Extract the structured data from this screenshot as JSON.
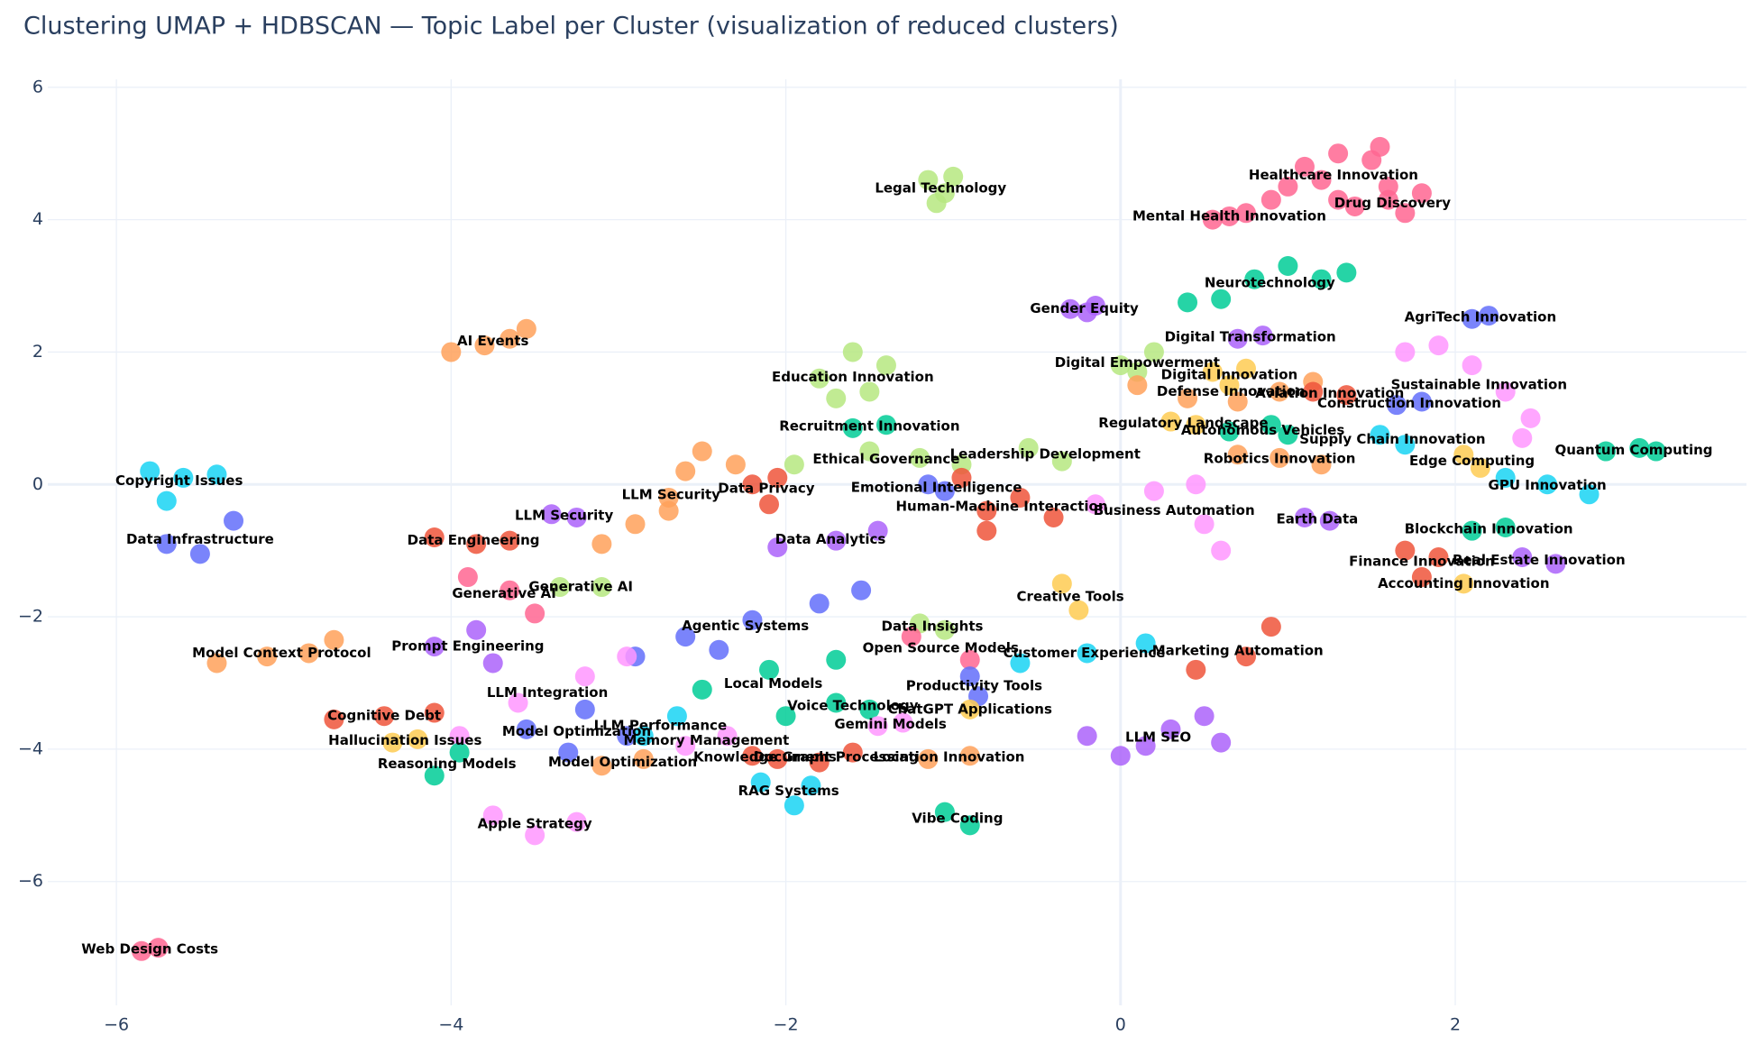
{
  "chart_data": {
    "type": "scatter",
    "title": "Clustering UMAP + HDBSCAN — Topic Label per Cluster (visualization of reduced clusters)",
    "xlim": [
      -6.41,
      3.74
    ],
    "ylim": [
      -7.87,
      6.12
    ],
    "xticks": [
      {
        "value": -6,
        "label": "−6"
      },
      {
        "value": -4,
        "label": "−4"
      },
      {
        "value": -2,
        "label": "−2"
      },
      0,
      2
    ],
    "yticks": [
      {
        "value": -6,
        "label": "−6"
      },
      {
        "value": -4,
        "label": "−4"
      },
      {
        "value": -2,
        "label": "−2"
      },
      0,
      2,
      4,
      6
    ],
    "grid": true,
    "series": [
      {
        "name": "Healthcare Innovation",
        "color": "#FF6692",
        "x": [
          0.9,
          1.1,
          1.3,
          1.5,
          1.6,
          1.3,
          1.0,
          1.2,
          1.55
        ],
        "y": [
          4.3,
          4.8,
          5.0,
          4.9,
          4.5,
          4.3,
          4.5,
          4.6,
          5.1
        ]
      },
      {
        "name": "Drug Discovery",
        "color": "#FF6692",
        "x": [
          1.4,
          1.6,
          1.8,
          1.7
        ],
        "y": [
          4.2,
          4.3,
          4.4,
          4.1
        ]
      },
      {
        "name": "Mental Health Innovation",
        "color": "#FF6692",
        "x": [
          0.55,
          0.65,
          0.75
        ],
        "y": [
          4.0,
          4.05,
          4.1
        ]
      },
      {
        "name": "Legal Technology",
        "color": "#B6E880",
        "x": [
          -1.15,
          -1.0,
          -1.05,
          -1.1
        ],
        "y": [
          4.6,
          4.65,
          4.4,
          4.25
        ]
      },
      {
        "name": "Neurotechnology",
        "color": "#00cc96",
        "x": [
          0.4,
          0.6,
          0.8,
          1.0,
          1.2,
          1.35
        ],
        "y": [
          2.75,
          2.8,
          3.1,
          3.3,
          3.1,
          3.2
        ]
      },
      {
        "name": "Gender Equity",
        "color": "#ab63fa",
        "x": [
          -0.3,
          -0.15,
          -0.2
        ],
        "y": [
          2.65,
          2.7,
          2.6
        ]
      },
      {
        "name": "AgriTech Innovation",
        "color": "#636efa",
        "x": [
          2.1,
          2.2
        ],
        "y": [
          2.5,
          2.55
        ]
      },
      {
        "name": "Digital Transformation",
        "color": "#ab63fa",
        "x": [
          0.7,
          0.85
        ],
        "y": [
          2.2,
          2.25
        ]
      },
      {
        "name": "Digital Empowerment",
        "color": "#B6E880",
        "x": [
          0.0,
          0.2,
          0.1
        ],
        "y": [
          1.8,
          2.0,
          1.7
        ]
      },
      {
        "name": "Digital Innovation",
        "color": "#FECB52",
        "x": [
          0.55,
          0.75,
          0.65
        ],
        "y": [
          1.7,
          1.75,
          1.5
        ]
      },
      {
        "name": "Sustainable Innovation",
        "color": "#FF97FF",
        "x": [
          1.7,
          1.9,
          2.1,
          2.3,
          2.45,
          2.4
        ],
        "y": [
          2.0,
          2.1,
          1.8,
          1.4,
          1.0,
          0.7
        ]
      },
      {
        "name": "Education Innovation",
        "color": "#B6E880",
        "x": [
          -1.8,
          -1.6,
          -1.4,
          -1.5,
          -1.7
        ],
        "y": [
          1.6,
          2.0,
          1.8,
          1.4,
          1.3
        ]
      },
      {
        "name": "Defense Innovation",
        "color": "#FFA15A",
        "x": [
          0.1,
          0.4,
          0.7,
          0.95,
          1.15
        ],
        "y": [
          1.5,
          1.3,
          1.25,
          1.4,
          1.55
        ]
      },
      {
        "name": "Aviation Innovation",
        "color": "#EF553B",
        "x": [
          1.15,
          1.35
        ],
        "y": [
          1.4,
          1.35
        ]
      },
      {
        "name": "Construction Innovation",
        "color": "#636efa",
        "x": [
          1.65,
          1.8
        ],
        "y": [
          1.2,
          1.25
        ]
      },
      {
        "name": "Regulatory Landscape",
        "color": "#FECB52",
        "x": [
          0.3,
          0.45
        ],
        "y": [
          0.95,
          0.9
        ]
      },
      {
        "name": "Autonomous Vehicles",
        "color": "#00cc96",
        "x": [
          0.65,
          0.9,
          1.0
        ],
        "y": [
          0.8,
          0.9,
          0.75
        ]
      },
      {
        "name": "Supply Chain Innovation",
        "color": "#19d3f3",
        "x": [
          1.55,
          1.7
        ],
        "y": [
          0.75,
          0.6
        ]
      },
      {
        "name": "Edge Computing",
        "color": "#FECB52",
        "x": [
          2.05,
          2.15
        ],
        "y": [
          0.45,
          0.25
        ]
      },
      {
        "name": "Quantum Computing",
        "color": "#00cc96",
        "x": [
          2.9,
          3.1,
          3.2
        ],
        "y": [
          0.5,
          0.55,
          0.5
        ]
      },
      {
        "name": "Robotics Innovation",
        "color": "#FFA15A",
        "x": [
          0.7,
          0.95,
          1.2
        ],
        "y": [
          0.45,
          0.4,
          0.3
        ]
      },
      {
        "name": "GPU Innovation",
        "color": "#19d3f3",
        "x": [
          2.3,
          2.55,
          2.8
        ],
        "y": [
          0.1,
          0.0,
          -0.15
        ]
      },
      {
        "name": "Copyright Issues",
        "color": "#19d3f3",
        "x": [
          -5.8,
          -5.6,
          -5.4,
          -5.7
        ],
        "y": [
          0.2,
          0.1,
          0.15,
          -0.25
        ]
      },
      {
        "name": "Data Infrastructure",
        "color": "#636efa",
        "x": [
          -5.7,
          -5.5,
          -5.3
        ],
        "y": [
          -0.9,
          -1.05,
          -0.55
        ]
      },
      {
        "name": "AI Events",
        "color": "#FFA15A",
        "x": [
          -4.0,
          -3.8,
          -3.65,
          -3.55
        ],
        "y": [
          2.0,
          2.1,
          2.2,
          2.35
        ]
      },
      {
        "name": "LLM Security",
        "color": "#FFA15A",
        "x": [
          -3.1,
          -2.9,
          -2.7,
          -2.6,
          -2.5,
          -2.3,
          -2.7
        ],
        "y": [
          -0.9,
          -0.6,
          -0.2,
          0.2,
          0.5,
          0.3,
          -0.4
        ]
      },
      {
        "name": "LLM Security",
        "color": "#ab63fa",
        "x": [
          -3.4,
          -3.25
        ],
        "y": [
          -0.45,
          -0.5
        ]
      },
      {
        "name": "Data Privacy",
        "color": "#EF553B",
        "x": [
          -2.2,
          -2.05,
          -2.1
        ],
        "y": [
          0.0,
          0.1,
          -0.3
        ]
      },
      {
        "name": "Recruitment Innovation",
        "color": "#00cc96",
        "x": [
          -1.6,
          -1.4
        ],
        "y": [
          0.85,
          0.9
        ]
      },
      {
        "name": "Ethical Governance",
        "color": "#B6E880",
        "x": [
          -1.95,
          -1.5,
          -1.2,
          -0.95
        ],
        "y": [
          0.3,
          0.5,
          0.4,
          0.3
        ]
      },
      {
        "name": "Leadership Development",
        "color": "#B6E880",
        "x": [
          -0.55,
          -0.35
        ],
        "y": [
          0.55,
          0.35
        ]
      },
      {
        "name": "Emotional Intelligence",
        "color": "#636efa",
        "x": [
          -1.15,
          -1.05
        ],
        "y": [
          0.0,
          -0.1
        ]
      },
      {
        "name": "Human-Machine Interaction",
        "color": "#EF553B",
        "x": [
          -0.95,
          -0.8,
          -0.6,
          -0.4,
          -0.8
        ],
        "y": [
          0.1,
          -0.4,
          -0.2,
          -0.5,
          -0.7
        ]
      },
      {
        "name": "Business Automation",
        "color": "#FF97FF",
        "x": [
          -0.15,
          0.2,
          0.45,
          0.5,
          0.6
        ],
        "y": [
          -0.3,
          -0.1,
          0.0,
          -0.6,
          -1.0
        ]
      },
      {
        "name": "Earth Data",
        "color": "#ab63fa",
        "x": [
          1.1,
          1.25
        ],
        "y": [
          -0.5,
          -0.55
        ]
      },
      {
        "name": "Blockchain Innovation",
        "color": "#00cc96",
        "x": [
          2.1,
          2.3
        ],
        "y": [
          -0.7,
          -0.65
        ]
      },
      {
        "name": "Finance Innovation",
        "color": "#EF553B",
        "x": [
          1.7,
          1.9,
          1.8
        ],
        "y": [
          -1.0,
          -1.1,
          -1.4
        ]
      },
      {
        "name": "Real Estate Innovation",
        "color": "#ab63fa",
        "x": [
          2.4,
          2.6
        ],
        "y": [
          -1.1,
          -1.2
        ]
      },
      {
        "name": "Accounting Innovation",
        "color": "#FECB52",
        "x": [
          2.05
        ],
        "y": [
          -1.5
        ]
      },
      {
        "name": "Data Engineering",
        "color": "#EF553B",
        "x": [
          -4.1,
          -3.85,
          -3.65
        ],
        "y": [
          -0.8,
          -0.9,
          -0.85
        ]
      },
      {
        "name": "Generative AI",
        "color": "#FF6692",
        "x": [
          -3.9,
          -3.65,
          -3.5
        ],
        "y": [
          -1.4,
          -1.6,
          -1.95
        ]
      },
      {
        "name": "Generative AI",
        "color": "#B6E880",
        "x": [
          -3.35,
          -3.1
        ],
        "y": [
          -1.55,
          -1.55
        ]
      },
      {
        "name": "Data Analytics",
        "color": "#ab63fa",
        "x": [
          -2.05,
          -1.7,
          -1.45
        ],
        "y": [
          -0.95,
          -0.85,
          -0.7
        ]
      },
      {
        "name": "Creative Tools",
        "color": "#FECB52",
        "x": [
          -0.35,
          -0.25
        ],
        "y": [
          -1.5,
          -1.9
        ]
      },
      {
        "name": "Agentic Systems",
        "color": "#636efa",
        "x": [
          -2.9,
          -2.6,
          -2.2,
          -1.8,
          -1.55,
          -2.4
        ],
        "y": [
          -2.6,
          -2.3,
          -2.05,
          -1.8,
          -1.6,
          -2.5
        ]
      },
      {
        "name": "Data Insights",
        "color": "#B6E880",
        "x": [
          -1.2,
          -1.05
        ],
        "y": [
          -2.1,
          -2.2
        ]
      },
      {
        "name": "Model Context Protocol",
        "color": "#FFA15A",
        "x": [
          -5.4,
          -5.1,
          -4.85,
          -4.7
        ],
        "y": [
          -2.7,
          -2.6,
          -2.55,
          -2.35
        ]
      },
      {
        "name": "Prompt Engineering",
        "color": "#ab63fa",
        "x": [
          -4.1,
          -3.85,
          -3.75
        ],
        "y": [
          -2.45,
          -2.2,
          -2.7
        ]
      },
      {
        "name": "LLM Integration",
        "color": "#FF97FF",
        "x": [
          -3.95,
          -3.6,
          -3.2,
          -2.95
        ],
        "y": [
          -3.8,
          -3.3,
          -2.9,
          -2.6
        ]
      },
      {
        "name": "Open Source Models",
        "color": "#FF6692",
        "x": [
          -1.25,
          -0.9
        ],
        "y": [
          -2.3,
          -2.65
        ]
      },
      {
        "name": "Customer Experience",
        "color": "#19d3f3",
        "x": [
          -0.6,
          -0.2,
          0.15
        ],
        "y": [
          -2.7,
          -2.55,
          -2.4
        ]
      },
      {
        "name": "Marketing Automation",
        "color": "#EF553B",
        "x": [
          0.45,
          0.75,
          0.9
        ],
        "y": [
          -2.8,
          -2.6,
          -2.15
        ]
      },
      {
        "name": "Local Models",
        "color": "#00cc96",
        "x": [
          -2.5,
          -2.1,
          -1.7,
          -2.0
        ],
        "y": [
          -3.1,
          -2.8,
          -2.65,
          -3.5
        ]
      },
      {
        "name": "Productivity Tools",
        "color": "#636efa",
        "x": [
          -0.9,
          -0.85
        ],
        "y": [
          -2.9,
          -3.2
        ]
      },
      {
        "name": "Voice Technology",
        "color": "#00cc96",
        "x": [
          -1.7,
          -1.5
        ],
        "y": [
          -3.3,
          -3.4
        ]
      },
      {
        "name": "ChatGPT Applications",
        "color": "#FECB52",
        "x": [
          -0.9
        ],
        "y": [
          -3.4
        ]
      },
      {
        "name": "Gemini Models",
        "color": "#FF97FF",
        "x": [
          -1.45,
          -1.3
        ],
        "y": [
          -3.65,
          -3.6
        ]
      },
      {
        "name": "Cognitive Debt",
        "color": "#EF553B",
        "x": [
          -4.7,
          -4.4,
          -4.1
        ],
        "y": [
          -3.55,
          -3.5,
          -3.45
        ]
      },
      {
        "name": "Hallucination Issues",
        "color": "#FECB52",
        "x": [
          -4.35,
          -4.2
        ],
        "y": [
          -3.9,
          -3.85
        ]
      },
      {
        "name": "Model Optimization",
        "color": "#636efa",
        "x": [
          -3.55,
          -3.2,
          -2.95,
          -3.3
        ],
        "y": [
          -3.7,
          -3.4,
          -3.8,
          -4.05
        ]
      },
      {
        "name": "LLM Performance",
        "color": "#19d3f3",
        "x": [
          -2.85,
          -2.65
        ],
        "y": [
          -3.8,
          -3.5
        ]
      },
      {
        "name": "Memory Management",
        "color": "#FF97FF",
        "x": [
          -2.6,
          -2.35
        ],
        "y": [
          -3.95,
          -3.8
        ]
      },
      {
        "name": "Reasoning Models",
        "color": "#00cc96",
        "x": [
          -4.1,
          -3.95
        ],
        "y": [
          -4.4,
          -4.05
        ]
      },
      {
        "name": "Model Optimization",
        "color": "#FFA15A",
        "x": [
          -3.1,
          -2.85
        ],
        "y": [
          -4.25,
          -4.15
        ]
      },
      {
        "name": "Knowledge Graphs",
        "color": "#EF553B",
        "x": [
          -2.2,
          -2.05
        ],
        "y": [
          -4.1,
          -4.15
        ]
      },
      {
        "name": "Document Processing",
        "color": "#EF553B",
        "x": [
          -1.8,
          -1.6
        ],
        "y": [
          -4.2,
          -4.05
        ]
      },
      {
        "name": "Location Innovation",
        "color": "#FFA15A",
        "x": [
          -1.15,
          -0.9
        ],
        "y": [
          -4.15,
          -4.1
        ]
      },
      {
        "name": "RAG Systems",
        "color": "#19d3f3",
        "x": [
          -2.15,
          -1.95,
          -1.85
        ],
        "y": [
          -4.5,
          -4.85,
          -4.55
        ]
      },
      {
        "name": "LLM SEO",
        "color": "#ab63fa",
        "x": [
          -0.2,
          0.0,
          0.3,
          0.5,
          0.6,
          0.15
        ],
        "y": [
          -3.8,
          -4.1,
          -3.7,
          -3.5,
          -3.9,
          -3.95
        ]
      },
      {
        "name": "Vibe Coding",
        "color": "#00cc96",
        "x": [
          -1.05,
          -0.9
        ],
        "y": [
          -4.95,
          -5.15
        ]
      },
      {
        "name": "Apple Strategy",
        "color": "#FF97FF",
        "x": [
          -3.75,
          -3.5,
          -3.25
        ],
        "y": [
          -5.0,
          -5.3,
          -5.1
        ]
      },
      {
        "name": "Web Design Costs",
        "color": "#FF6692",
        "x": [
          -5.85,
          -5.75
        ],
        "y": [
          -7.05,
          -7.0
        ]
      }
    ]
  }
}
